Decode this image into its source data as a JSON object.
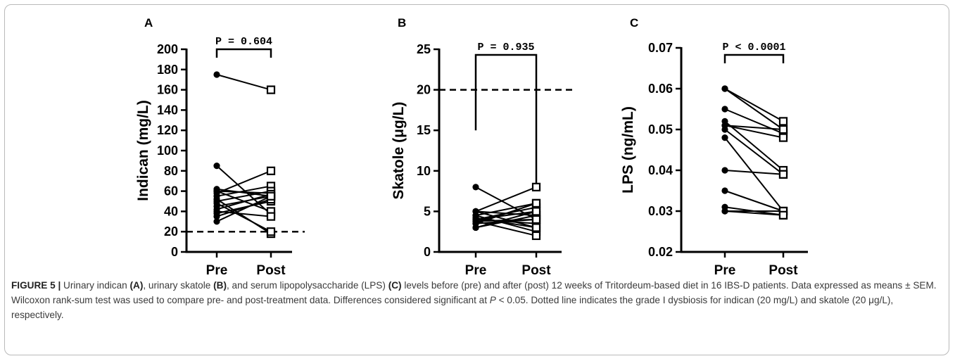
{
  "chart_data": [
    {
      "type": "paired-dot",
      "panel": "A",
      "xlabel": "",
      "ylabel": "Indican (mg/L)",
      "categories": [
        "Pre",
        "Post"
      ],
      "ylim": [
        0,
        200
      ],
      "yticks": [
        0,
        20,
        40,
        60,
        80,
        100,
        120,
        140,
        160,
        180,
        200
      ],
      "ytick_labels": [
        "0",
        "20",
        "40",
        "60",
        "80",
        "100",
        "120",
        "140",
        "160",
        "180",
        "200"
      ],
      "reference_line": 20,
      "annotation": "P = 0.604",
      "pairs": [
        [
          175,
          160
        ],
        [
          85,
          37
        ],
        [
          62,
          55
        ],
        [
          60,
          58
        ],
        [
          60,
          40
        ],
        [
          58,
          80
        ],
        [
          55,
          65
        ],
        [
          52,
          18
        ],
        [
          50,
          60
        ],
        [
          48,
          20
        ],
        [
          45,
          55
        ],
        [
          42,
          57
        ],
        [
          40,
          35
        ],
        [
          38,
          50
        ],
        [
          35,
          52
        ],
        [
          30,
          55
        ]
      ]
    },
    {
      "type": "paired-dot",
      "panel": "B",
      "xlabel": "",
      "ylabel": "Skatole (μg/L)",
      "categories": [
        "Pre",
        "Post"
      ],
      "ylim": [
        0,
        25
      ],
      "yticks": [
        0,
        5,
        10,
        15,
        20,
        25
      ],
      "ytick_labels": [
        "0",
        "5",
        "10",
        "15",
        "20",
        "25"
      ],
      "reference_line": 20,
      "annotation": "P = 0.935",
      "pairs": [
        [
          8,
          4
        ],
        [
          5,
          8
        ],
        [
          5,
          3
        ],
        [
          5,
          4.5
        ],
        [
          4.5,
          6
        ],
        [
          4.5,
          2.5
        ],
        [
          4,
          5
        ],
        [
          4,
          3.5
        ],
        [
          4,
          5.5
        ],
        [
          3.8,
          2
        ],
        [
          3.5,
          4
        ],
        [
          3.5,
          6
        ],
        [
          3,
          4.5
        ],
        [
          3,
          5
        ],
        [
          4.2,
          3
        ],
        [
          3.8,
          4
        ]
      ]
    },
    {
      "type": "paired-dot",
      "panel": "C",
      "xlabel": "",
      "ylabel": "LPS (ng/mL)",
      "categories": [
        "Pre",
        "Post"
      ],
      "ylim": [
        0.02,
        0.07
      ],
      "yticks": [
        0.02,
        0.03,
        0.04,
        0.05,
        0.06,
        0.07
      ],
      "ytick_labels": [
        "0.02",
        "0.03",
        "0.04",
        "0.05",
        "0.06",
        "0.07"
      ],
      "annotation": "P < 0.0001",
      "pairs": [
        [
          0.06,
          0.052
        ],
        [
          0.06,
          0.05
        ],
        [
          0.055,
          0.049
        ],
        [
          0.052,
          0.04
        ],
        [
          0.051,
          0.05
        ],
        [
          0.051,
          0.048
        ],
        [
          0.05,
          0.039
        ],
        [
          0.048,
          0.03
        ],
        [
          0.04,
          0.039
        ],
        [
          0.035,
          0.03
        ],
        [
          0.031,
          0.029
        ],
        [
          0.03,
          0.03
        ],
        [
          0.03,
          0.029
        ]
      ]
    }
  ],
  "caption": {
    "lead": "FIGURE 5 |",
    "t1": " Urinary indican ",
    "a": "(A)",
    "t2": ", urinary skatole ",
    "b": "(B)",
    "t3": ", and serum lipopolysaccharide (LPS) ",
    "c": "(C)",
    "t4": " levels before (pre) and after (post) 12 weeks of Tritordeum-based diet in 16 IBS-D patients. Data expressed as means ± SEM. Wilcoxon rank-sum test was used to compare pre- and post-treatment data. Differences considered significant at ",
    "p": "P",
    "t5": " < 0.05. Dotted line indicates the grade I dysbiosis for indican (20 mg/L) and skatole (20 μg/L), respectively."
  }
}
